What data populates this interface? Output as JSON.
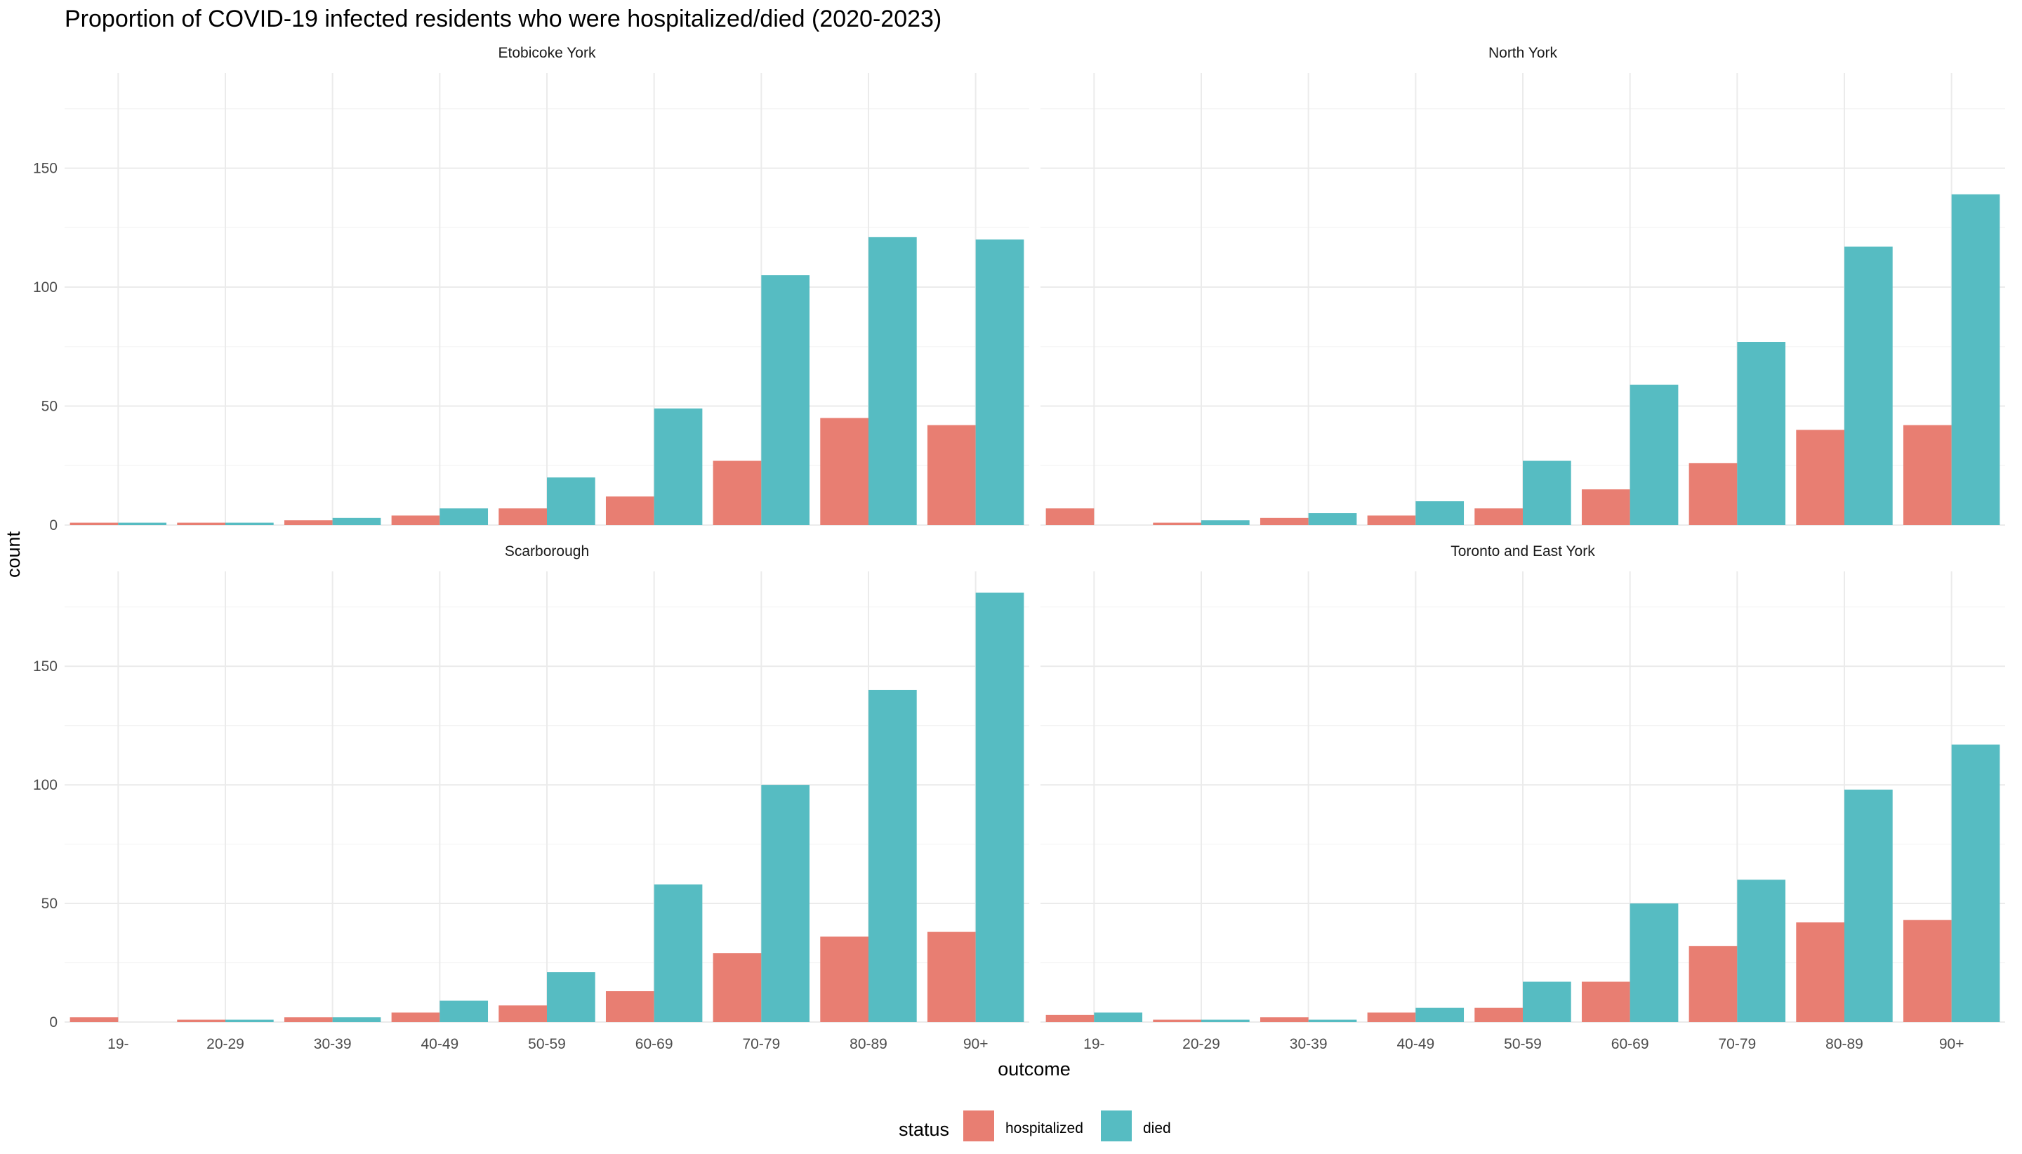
{
  "chart_data": {
    "type": "bar",
    "title": "Proportion of COVID-19 infected residents who were hospitalized/died (2020-2023)",
    "xlabel": "outcome",
    "ylabel": "count",
    "ylim": [
      0,
      190
    ],
    "yticks": [
      0,
      50,
      100,
      150
    ],
    "grid": true,
    "legend_position": "bottom",
    "legend_title": "status",
    "categories": [
      "19-",
      "20-29",
      "30-39",
      "40-49",
      "50-59",
      "60-69",
      "70-79",
      "80-89",
      "90+"
    ],
    "series_styles": [
      {
        "name": "hospitalized",
        "color": "#e87e72"
      },
      {
        "name": "died",
        "color": "#56bcc2"
      }
    ],
    "panels": [
      {
        "label": "Etobicoke York",
        "series": [
          {
            "name": "hospitalized",
            "values": [
              1,
              1,
              2,
              4,
              7,
              12,
              27,
              45,
              42
            ]
          },
          {
            "name": "died",
            "values": [
              1,
              1,
              3,
              7,
              20,
              49,
              105,
              121,
              120
            ]
          }
        ]
      },
      {
        "label": "North York",
        "series": [
          {
            "name": "hospitalized",
            "values": [
              7,
              1,
              3,
              4,
              7,
              15,
              26,
              40,
              42
            ]
          },
          {
            "name": "died",
            "values": [
              0,
              2,
              5,
              10,
              27,
              59,
              77,
              117,
              139
            ]
          }
        ]
      },
      {
        "label": "Scarborough",
        "series": [
          {
            "name": "hospitalized",
            "values": [
              2,
              1,
              2,
              4,
              7,
              13,
              29,
              36,
              38
            ]
          },
          {
            "name": "died",
            "values": [
              0,
              1,
              2,
              9,
              21,
              58,
              100,
              140,
              181
            ]
          }
        ]
      },
      {
        "label": "Toronto and East York",
        "series": [
          {
            "name": "hospitalized",
            "values": [
              3,
              1,
              2,
              4,
              6,
              17,
              32,
              42,
              43
            ]
          },
          {
            "name": "died",
            "values": [
              4,
              1,
              1,
              6,
              17,
              50,
              60,
              98,
              117
            ]
          }
        ]
      }
    ]
  }
}
